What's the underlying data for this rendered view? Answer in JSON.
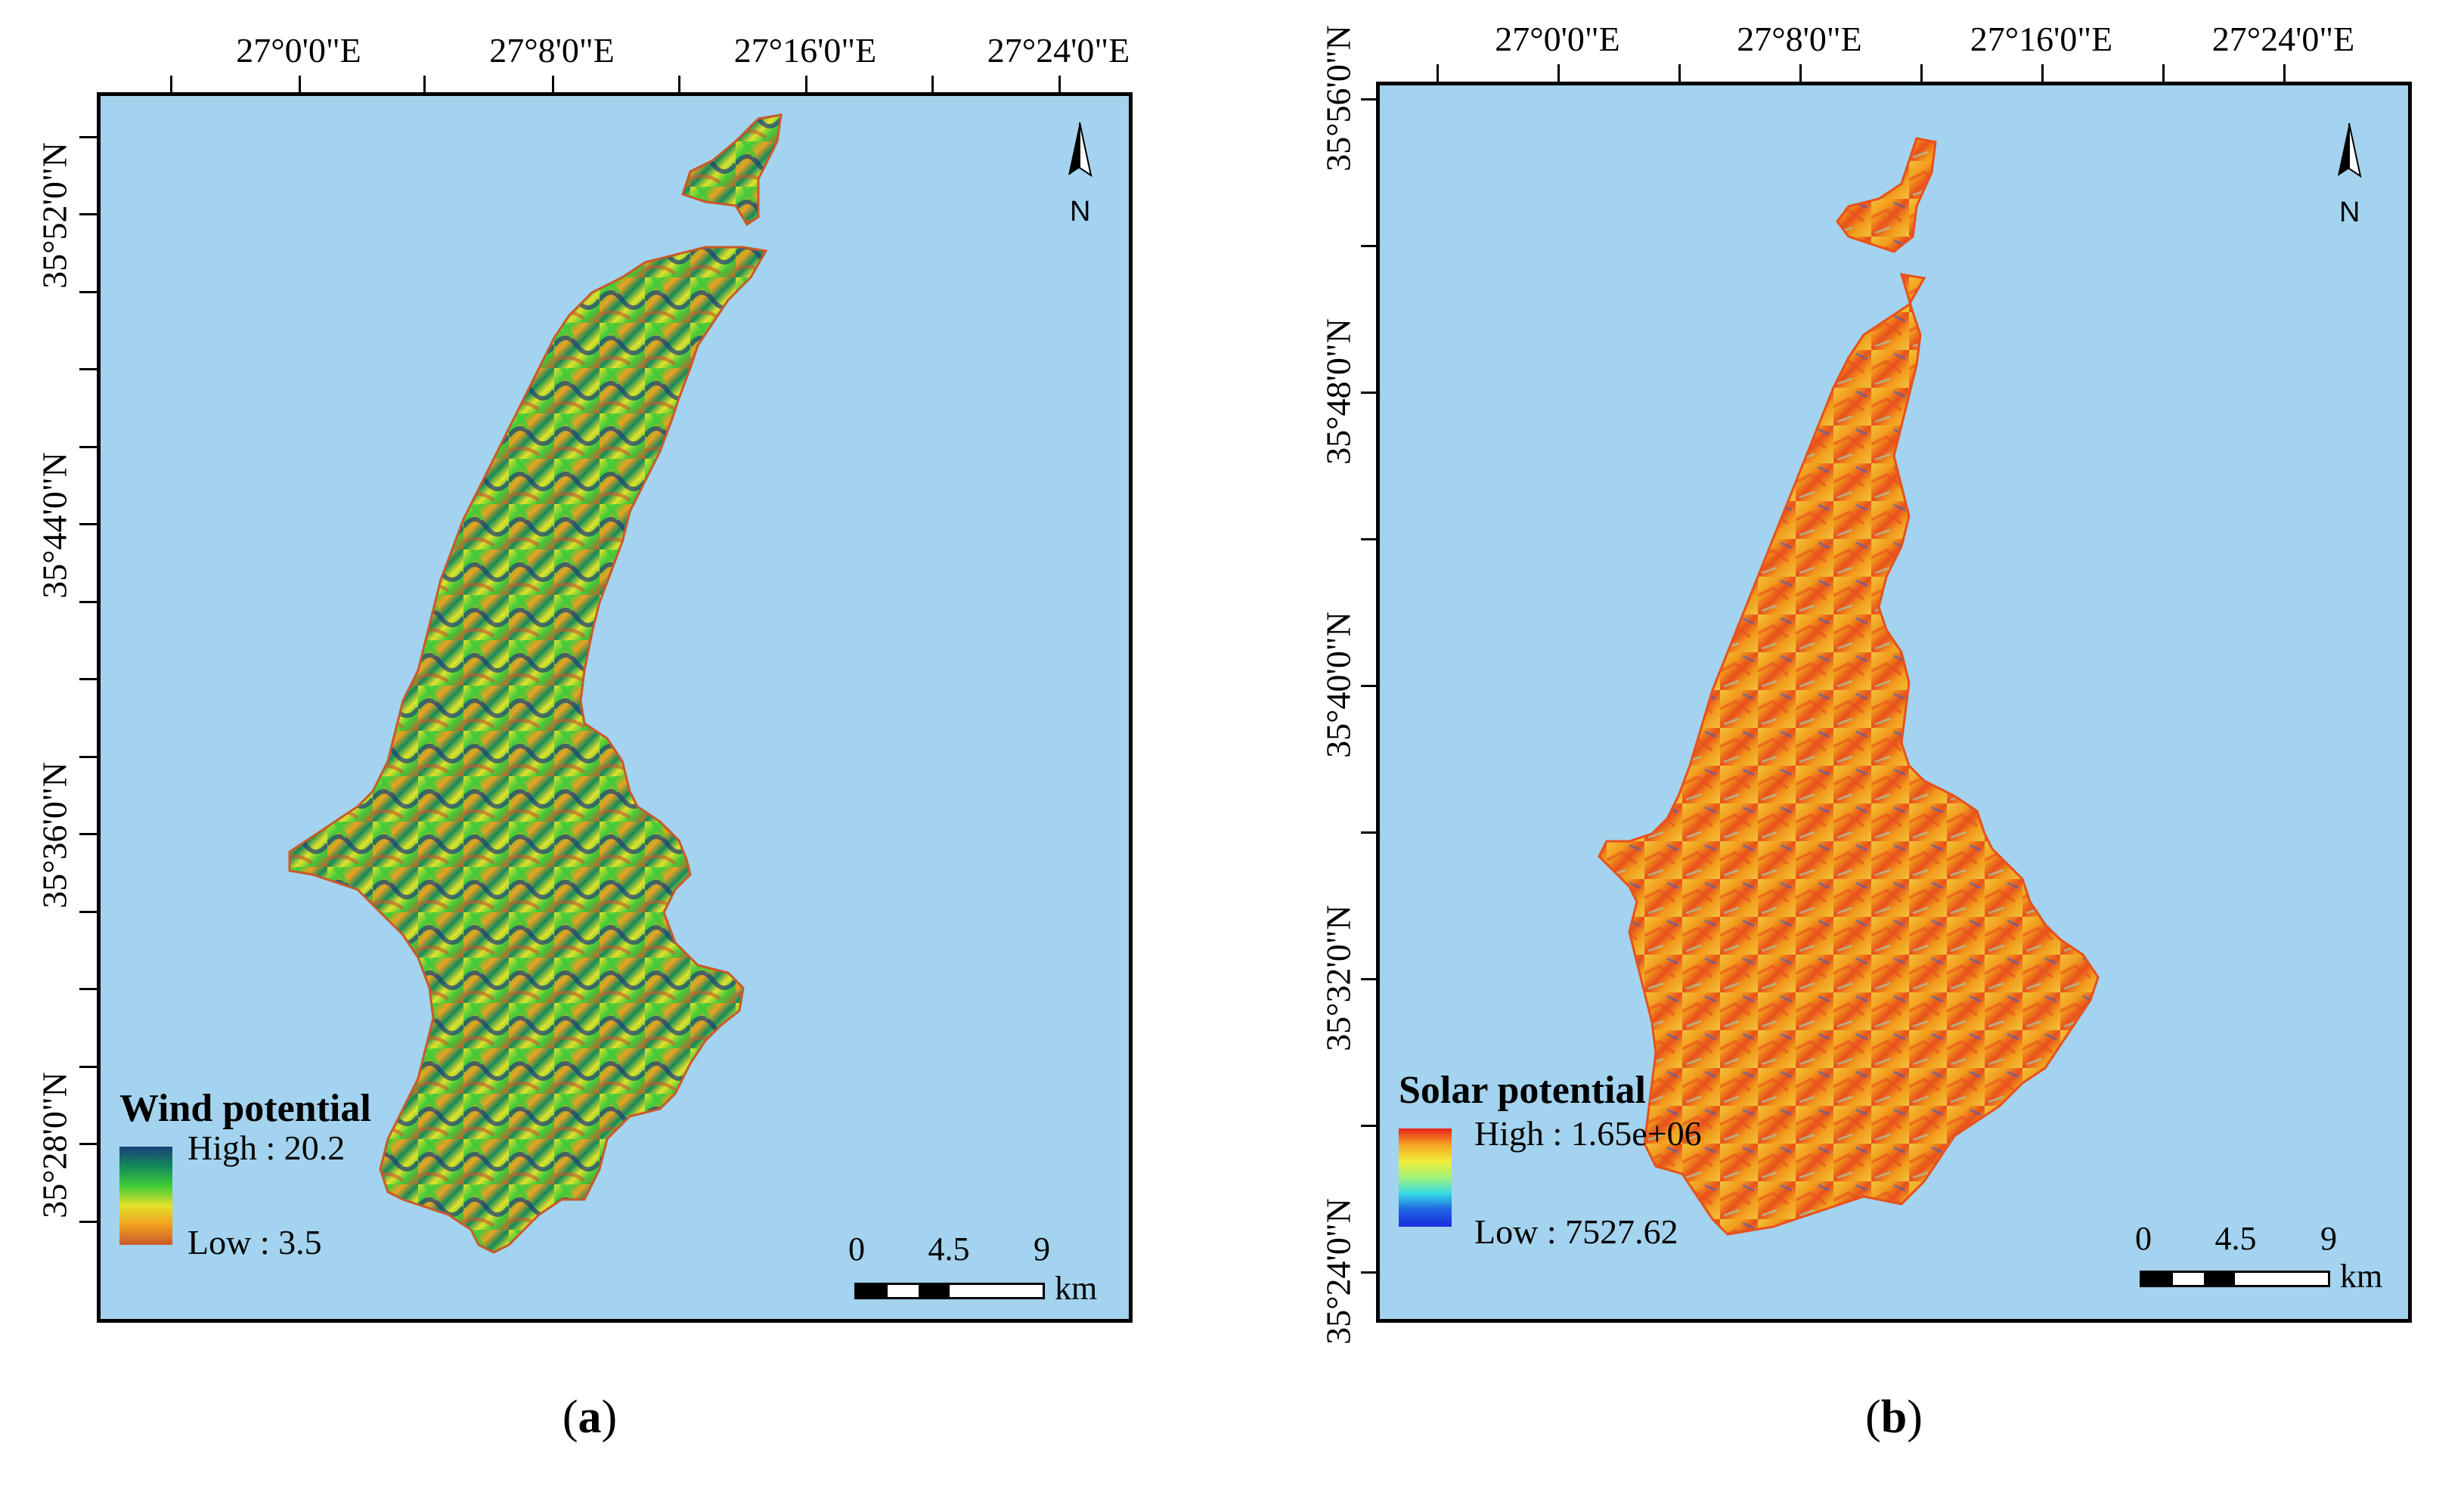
{
  "panels": [
    {
      "id": "a",
      "caption_open": "(",
      "caption_letter": "a",
      "caption_close": ")",
      "longitudes": [
        "27°0'0\"E",
        "27°8'0\"E",
        "27°16'0\"E",
        "27°24'0\"E"
      ],
      "latitudes": [
        "35°52'0\"N",
        "35°44'0\"N",
        "35°36'0\"N",
        "35°28'0\"N"
      ],
      "legend": {
        "title": "Wind potential",
        "high_label": "High : 20.2",
        "low_label": "Low : 3.5",
        "ramp_colors": [
          "#1b3f7a",
          "#138a5a",
          "#3ecb3a",
          "#e4e12a",
          "#f0a020",
          "#c9592a"
        ]
      },
      "scale": {
        "labels": [
          "0",
          "4.5",
          "9"
        ],
        "unit": "km"
      },
      "north_label": "N"
    },
    {
      "id": "b",
      "caption_open": "(",
      "caption_letter": "b",
      "caption_close": ")",
      "longitudes": [
        "27°0'0\"E",
        "27°8'0\"E",
        "27°16'0\"E",
        "27°24'0\"E"
      ],
      "latitudes": [
        "35°56'0\"N",
        "35°48'0\"N",
        "35°40'0\"N",
        "35°32'0\"N",
        "35°24'0\"N"
      ],
      "legend": {
        "title": "Solar potential",
        "high_label": "High : 1.65e+06",
        "low_label": "Low : 7527.62",
        "ramp_colors": [
          "#e8201c",
          "#f5a623",
          "#f2ef3a",
          "#9ff27a",
          "#36d8e8",
          "#1f5fe0",
          "#1a2de0"
        ]
      },
      "scale": {
        "labels": [
          "0",
          "4.5",
          "9"
        ],
        "unit": "km"
      },
      "north_label": "N"
    }
  ],
  "colors": {
    "sea": "#a3d3ee",
    "wind_land": [
      "#e4e12a",
      "#3ecb3a",
      "#138a5a",
      "#1b3f7a",
      "#c9592a",
      "#f0a020"
    ],
    "solar_land": [
      "#f29a1c",
      "#e8501c",
      "#f2c23a",
      "#9fd9c0",
      "#1f5fe0"
    ]
  }
}
